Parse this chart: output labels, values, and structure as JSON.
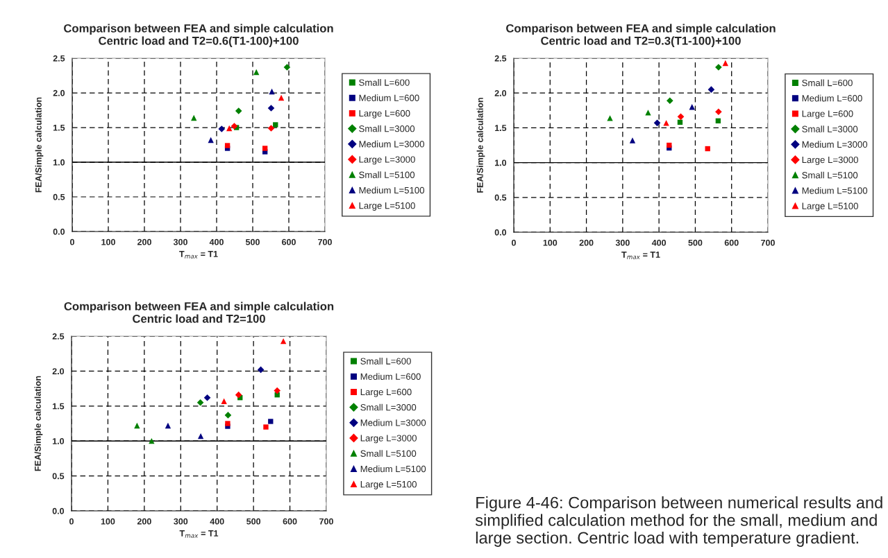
{
  "chart_data": [
    {
      "type": "scatter",
      "title": "Comparison between FEA and simple calculation\nCentric load and T2=0.6(T1-100)+100",
      "xlabel": "T$_{max}$ = T1",
      "ylabel": "FEA/Simple calculation",
      "xlim": [
        0,
        700
      ],
      "ylim": [
        0,
        2.5
      ],
      "xticks": [
        0,
        100,
        200,
        300,
        400,
        500,
        600,
        700
      ],
      "yticks": [
        {
          "value": 0,
          "label": "0.0"
        },
        {
          "value": 0.5,
          "label": "0.5"
        },
        {
          "value": 1,
          "label": "1.0"
        },
        {
          "value": 1.5,
          "label": "1.5"
        },
        {
          "value": 2,
          "label": "2.0"
        },
        {
          "value": 2.5,
          "label": "2.5"
        }
      ],
      "grid": true,
      "legend": "right",
      "ref_lines": [
        {
          "axis": "y",
          "value": 1,
          "color": "#000000",
          "line_style": "solid"
        }
      ],
      "series": [
        {
          "name": "Small L=600",
          "color": "#008000",
          "marker": "square",
          "x": [
            455,
            563
          ],
          "values": [
            1.5,
            1.54
          ]
        },
        {
          "name": "Medium L=600",
          "color": "#000080",
          "marker": "square",
          "x": [
            430,
            534
          ],
          "values": [
            1.2,
            1.15
          ]
        },
        {
          "name": "Large L=600",
          "color": "#ff0000",
          "marker": "square",
          "x": [
            430,
            534
          ],
          "values": [
            1.24,
            1.2
          ]
        },
        {
          "name": "Small L=3000",
          "color": "#008000",
          "marker": "diamond",
          "x": [
            461,
            595
          ],
          "values": [
            1.74,
            2.37
          ]
        },
        {
          "name": "Medium L=3000",
          "color": "#000080",
          "marker": "diamond",
          "x": [
            414,
            551
          ],
          "values": [
            1.48,
            1.78
          ]
        },
        {
          "name": "Large L=3000",
          "color": "#ff0000",
          "marker": "diamond",
          "x": [
            449,
            551
          ],
          "values": [
            1.52,
            1.49
          ]
        },
        {
          "name": "Small L=5100",
          "color": "#008000",
          "marker": "triangle",
          "x": [
            337,
            510
          ],
          "values": [
            1.64,
            2.3
          ]
        },
        {
          "name": "Medium L=5100",
          "color": "#000080",
          "marker": "triangle",
          "x": [
            384,
            553
          ],
          "values": [
            1.32,
            2.02
          ]
        },
        {
          "name": "Large L=5100",
          "color": "#ff0000",
          "marker": "triangle",
          "x": [
            435,
            579
          ],
          "values": [
            1.49,
            1.93
          ]
        }
      ]
    },
    {
      "type": "scatter",
      "title": "Comparison between FEA and simple calculation\nCentric load and T2=0.3(T1-100)+100",
      "xlabel": "T$_{max}$ = T1",
      "ylabel": "FEA/Simple calculation",
      "xlim": [
        0,
        700
      ],
      "ylim": [
        0,
        2.5
      ],
      "xticks": [
        0,
        100,
        200,
        300,
        400,
        500,
        600,
        700
      ],
      "yticks": [
        {
          "value": 0,
          "label": "0.0"
        },
        {
          "value": 0.5,
          "label": "0.5"
        },
        {
          "value": 1,
          "label": "1.0"
        },
        {
          "value": 1.5,
          "label": "1.5"
        },
        {
          "value": 2,
          "label": "2.0"
        },
        {
          "value": 2.5,
          "label": "2.5"
        }
      ],
      "grid": true,
      "legend": "right",
      "ref_lines": [
        {
          "axis": "y",
          "value": 1,
          "color": "#000000",
          "line_style": "solid"
        }
      ],
      "series": [
        {
          "name": "Small L=600",
          "color": "#008000",
          "marker": "square",
          "x": [
            458,
            563
          ],
          "values": [
            1.58,
            1.6
          ]
        },
        {
          "name": "Medium L=600",
          "color": "#000080",
          "marker": "square",
          "x": [
            428
          ],
          "values": [
            1.21
          ]
        },
        {
          "name": "Large L=600",
          "color": "#ff0000",
          "marker": "square",
          "x": [
            428,
            534
          ],
          "values": [
            1.25,
            1.2
          ]
        },
        {
          "name": "Small L=3000",
          "color": "#008000",
          "marker": "diamond",
          "x": [
            430,
            564
          ],
          "values": [
            1.89,
            2.37
          ]
        },
        {
          "name": "Medium L=3000",
          "color": "#000080",
          "marker": "diamond",
          "x": [
            395,
            544
          ],
          "values": [
            1.57,
            2.05
          ]
        },
        {
          "name": "Large L=3000",
          "color": "#ff0000",
          "marker": "diamond",
          "x": [
            460,
            564
          ],
          "values": [
            1.66,
            1.73
          ]
        },
        {
          "name": "Small L=5100",
          "color": "#008000",
          "marker": "triangle",
          "x": [
            265,
            370
          ],
          "values": [
            1.64,
            1.72
          ]
        },
        {
          "name": "Medium L=5100",
          "color": "#000080",
          "marker": "triangle",
          "x": [
            327,
            491
          ],
          "values": [
            1.32,
            1.8
          ]
        },
        {
          "name": "Large L=5100",
          "color": "#ff0000",
          "marker": "triangle",
          "x": [
            420,
            583
          ],
          "values": [
            1.57,
            2.43
          ]
        }
      ]
    },
    {
      "type": "scatter",
      "title": "Comparison between FEA and simple calculation\nCentric load and T2=100",
      "xlabel": "T$_{max}$ = T1",
      "ylabel": "FEA/Simple calculation",
      "xlim": [
        0,
        700
      ],
      "ylim": [
        0,
        2.5
      ],
      "xticks": [
        0,
        100,
        200,
        300,
        400,
        500,
        600,
        700
      ],
      "yticks": [
        {
          "value": 0,
          "label": "0.0"
        },
        {
          "value": 0.5,
          "label": "0.5"
        },
        {
          "value": 1,
          "label": "1.0"
        },
        {
          "value": 1.5,
          "label": "1.5"
        },
        {
          "value": 2,
          "label": "2.0"
        },
        {
          "value": 2.5,
          "label": "2.5"
        }
      ],
      "grid": true,
      "legend": "right",
      "ref_lines": [
        {
          "axis": "y",
          "value": 1,
          "color": "#000000",
          "line_style": "solid"
        }
      ],
      "series": [
        {
          "name": "Small L=600",
          "color": "#008000",
          "marker": "square",
          "x": [
            463,
            565
          ],
          "values": [
            1.62,
            1.66
          ]
        },
        {
          "name": "Medium L=600",
          "color": "#000080",
          "marker": "square",
          "x": [
            429,
            547
          ],
          "values": [
            1.21,
            1.28
          ]
        },
        {
          "name": "Large L=600",
          "color": "#ff0000",
          "marker": "square",
          "x": [
            429,
            534
          ],
          "values": [
            1.25,
            1.2
          ]
        },
        {
          "name": "Small L=3000",
          "color": "#008000",
          "marker": "diamond",
          "x": [
            354,
            430
          ],
          "values": [
            1.55,
            1.37
          ]
        },
        {
          "name": "Medium L=3000",
          "color": "#000080",
          "marker": "diamond",
          "x": [
            373,
            520
          ],
          "values": [
            1.62,
            2.02
          ]
        },
        {
          "name": "Large L=3000",
          "color": "#ff0000",
          "marker": "diamond",
          "x": [
            459,
            565
          ],
          "values": [
            1.66,
            1.72
          ]
        },
        {
          "name": "Small L=5100",
          "color": "#008000",
          "marker": "triangle",
          "x": [
            180,
            220
          ],
          "values": [
            1.22,
            1.0
          ]
        },
        {
          "name": "Medium L=5100",
          "color": "#000080",
          "marker": "triangle",
          "x": [
            265,
            355
          ],
          "values": [
            1.22,
            1.07
          ]
        },
        {
          "name": "Large L=5100",
          "color": "#ff0000",
          "marker": "triangle",
          "x": [
            419,
            582
          ],
          "values": [
            1.57,
            2.43
          ]
        }
      ]
    },
    {
      "type": "other",
      "annotations": [
        "Figure 4-46: Comparison between numerical results and simplified calculation method for the small, medium and large section. Centric load with temperature gradient."
      ]
    }
  ]
}
